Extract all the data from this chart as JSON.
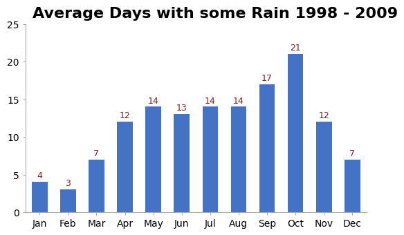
{
  "title": "Average Days with some Rain 1998 - 2009",
  "months": [
    "Jan",
    "Feb",
    "Mar",
    "Apr",
    "May",
    "Jun",
    "Jul",
    "Aug",
    "Sep",
    "Oct",
    "Nov",
    "Dec"
  ],
  "values": [
    4,
    3,
    7,
    12,
    14,
    13,
    14,
    14,
    17,
    21,
    12,
    7
  ],
  "bar_color": "#4472C4",
  "ylim": [
    0,
    25
  ],
  "yticks": [
    0,
    5,
    10,
    15,
    20,
    25
  ],
  "label_color": "#7F2020",
  "title_fontsize": 16,
  "label_fontsize": 9,
  "tick_fontsize": 10,
  "background_color": "#ffffff",
  "bar_width": 0.55
}
